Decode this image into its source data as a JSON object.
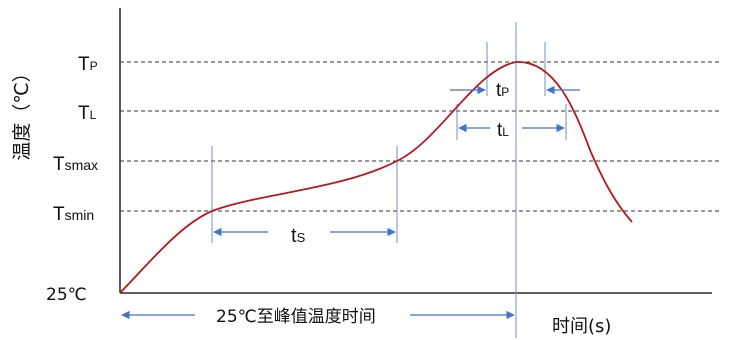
{
  "y_axis_title": "温度（℃）",
  "x_axis_title": "时间(s)",
  "levels": {
    "tp": {
      "main": "T",
      "sub": "P"
    },
    "tl": {
      "main": "T",
      "sub": "L"
    },
    "tsmax": {
      "main": "T",
      "sub": "smax"
    },
    "tsmin": {
      "main": "T",
      "sub": "smin"
    },
    "t25": "25℃"
  },
  "intervals": {
    "ts": {
      "main": "t",
      "sub": "S"
    },
    "tp": {
      "main": "t",
      "sub": "P"
    },
    "tl": {
      "main": "t",
      "sub": "L"
    },
    "t25_to_peak": "25℃至峰值温度时间"
  },
  "colors": {
    "curve": "#b01c22",
    "guide": "#6f8fc8",
    "dimension_arrow": "#4472c4",
    "axis": "#000000",
    "dashed_level": "#333333"
  }
}
